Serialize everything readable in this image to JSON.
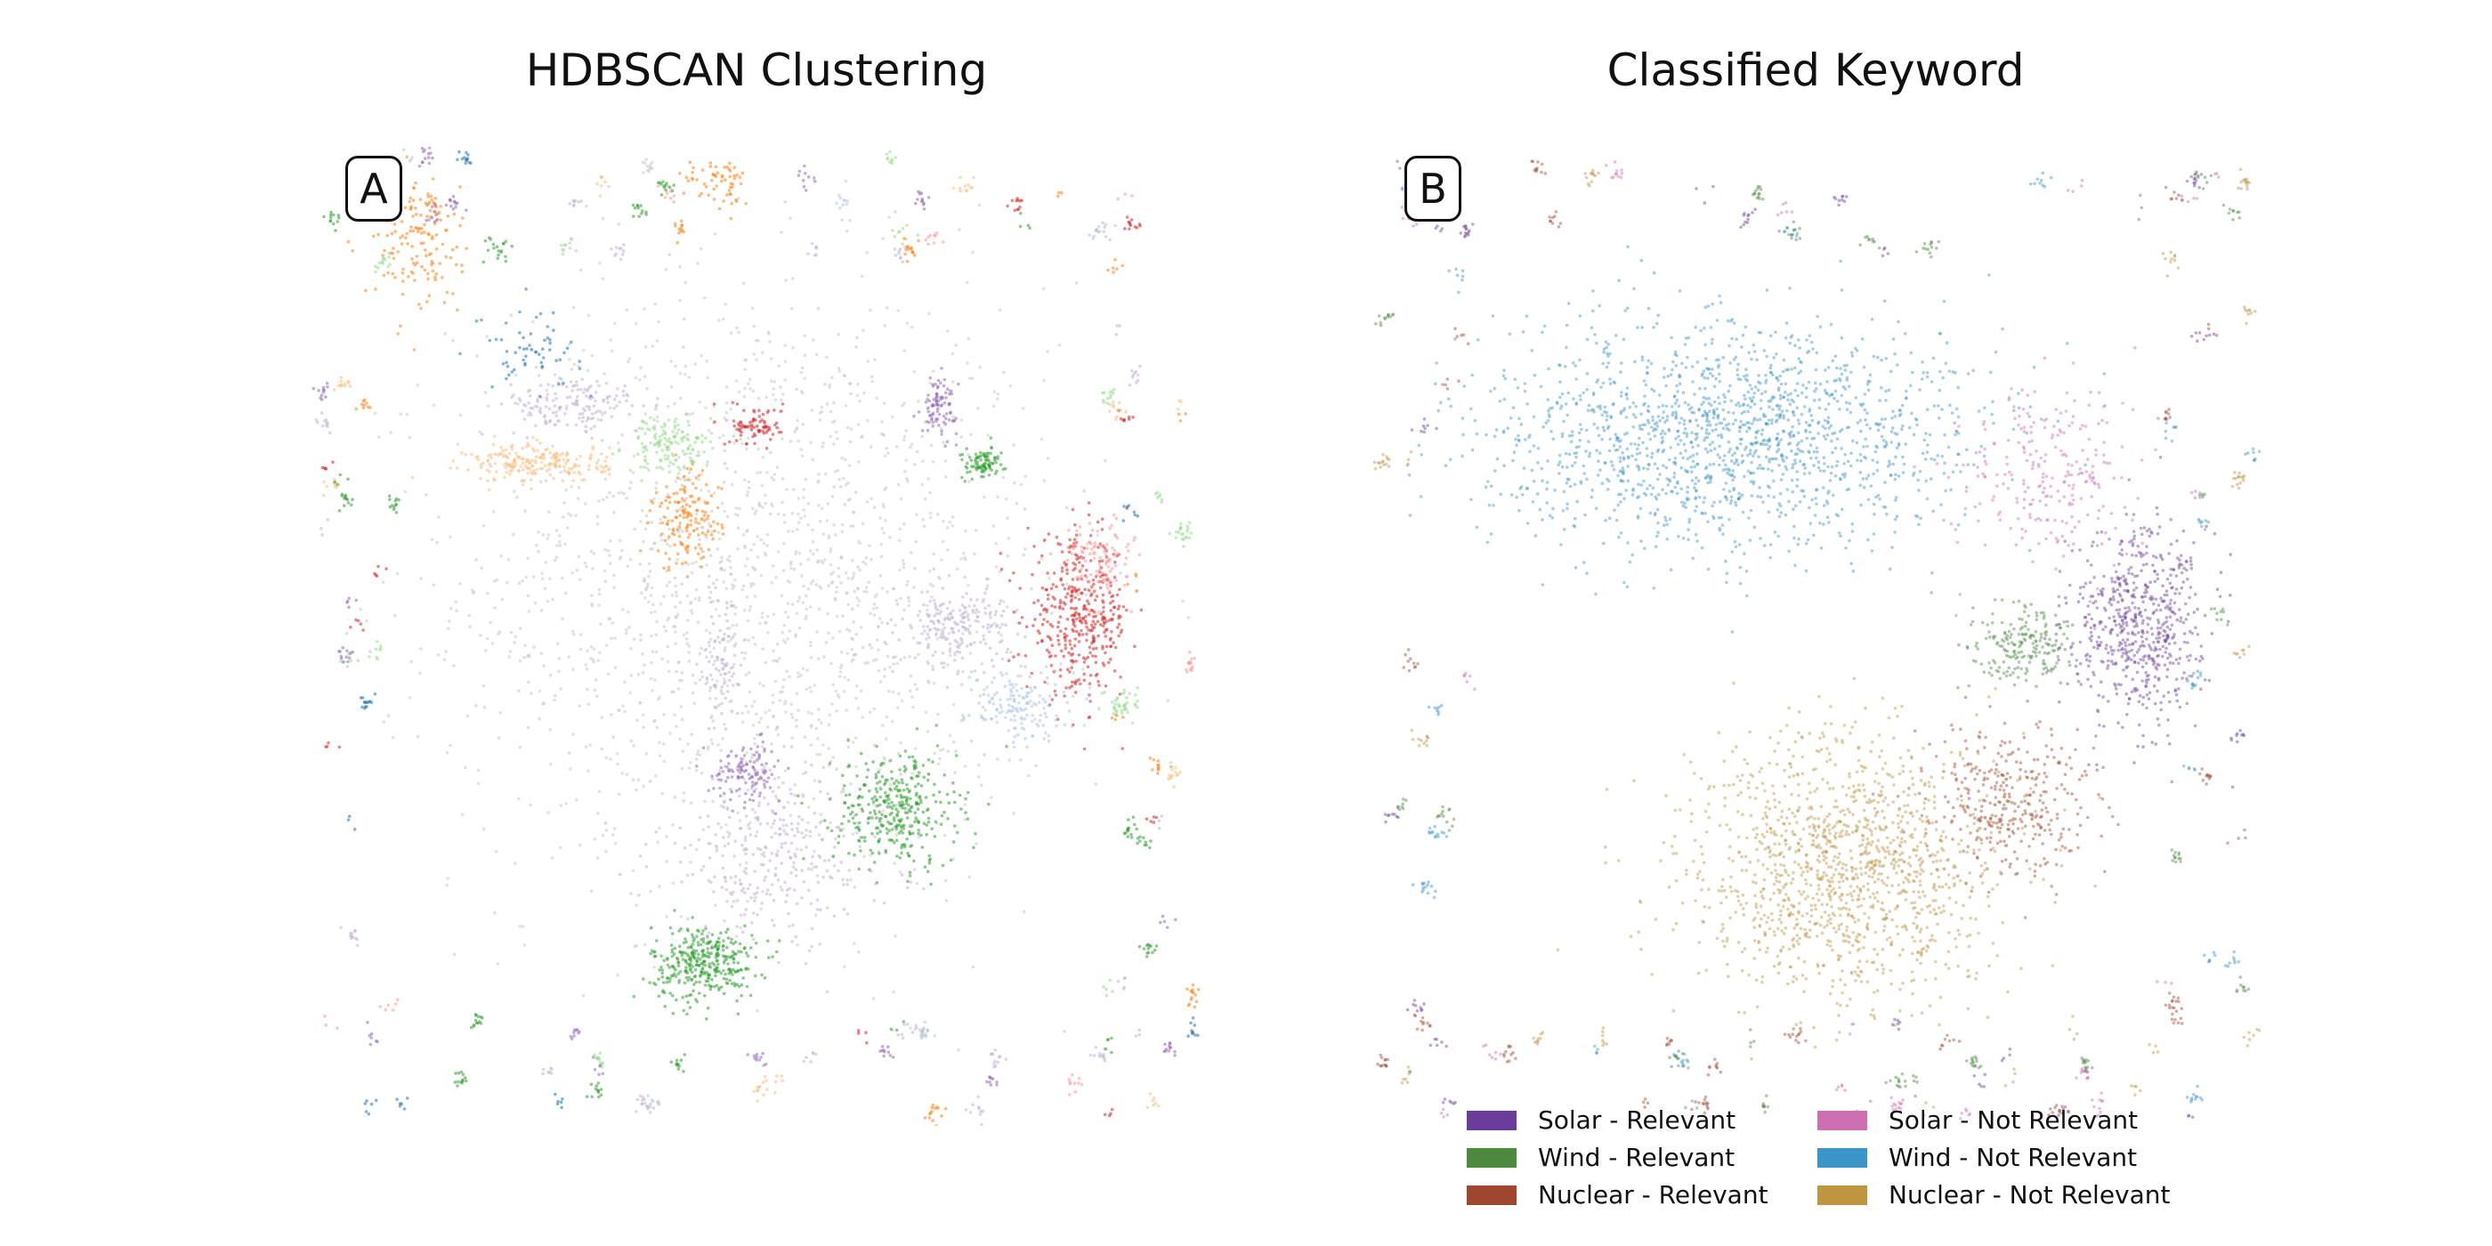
{
  "chart_data": [
    {
      "type": "scatter",
      "panel": "A",
      "title": "HDBSCAN Clustering",
      "xlabel": "",
      "ylabel": "",
      "axes": "hidden",
      "xlim": [
        0,
        100
      ],
      "ylim": [
        0,
        100
      ],
      "color_scheme": "tab20 cluster labels; grey = noise",
      "clusters": [
        {
          "label": "noise",
          "color": "#c8c8c8",
          "centroid": [
            50,
            55
          ],
          "spread": [
            17,
            16
          ],
          "n": 1800
        },
        {
          "label": "c1",
          "color": "#2ca02c",
          "centroid": [
            44,
            16
          ],
          "spread": [
            3,
            2
          ],
          "n": 350
        },
        {
          "label": "c2",
          "color": "#2ca02c",
          "centroid": [
            66,
            32
          ],
          "spread": [
            3.5,
            3
          ],
          "n": 350
        },
        {
          "label": "c3",
          "color": "#c5b0d5",
          "centroid": [
            52,
            27
          ],
          "spread": [
            7,
            4.5
          ],
          "n": 300
        },
        {
          "label": "c4",
          "color": "#d62728",
          "centroid": [
            87,
            52
          ],
          "spread": [
            3,
            4
          ],
          "n": 400
        },
        {
          "label": "c5",
          "color": "#c5b0d5",
          "centroid": [
            73,
            51
          ],
          "spread": [
            3,
            2
          ],
          "n": 200
        },
        {
          "label": "c6",
          "color": "#aec7e8",
          "centroid": [
            80,
            43
          ],
          "spread": [
            3,
            2
          ],
          "n": 150
        },
        {
          "label": "c7",
          "color": "#ffbb78",
          "centroid": [
            25,
            68
          ],
          "spread": [
            4,
            1
          ],
          "n": 200
        },
        {
          "label": "c8",
          "color": "#ff7f0e",
          "centroid": [
            42,
            62
          ],
          "spread": [
            2,
            2.5
          ],
          "n": 150
        },
        {
          "label": "c9",
          "color": "#98df8a",
          "centroid": [
            40,
            70
          ],
          "spread": [
            2.5,
            1.5
          ],
          "n": 150
        },
        {
          "label": "c10",
          "color": "#c5b0d5",
          "centroid": [
            29,
            74
          ],
          "spread": [
            4,
            1.5
          ],
          "n": 150
        },
        {
          "label": "c11",
          "color": "#1f77b4",
          "centroid": [
            24,
            80
          ],
          "spread": [
            3,
            2
          ],
          "n": 60
        },
        {
          "label": "c12",
          "color": "#9467bd",
          "centroid": [
            49,
            36
          ],
          "spread": [
            2,
            1.5
          ],
          "n": 120
        },
        {
          "label": "c13",
          "color": "#9467bd",
          "centroid": [
            71,
            74
          ],
          "spread": [
            1,
            1.5
          ],
          "n": 90
        },
        {
          "label": "c14",
          "color": "#ff9896",
          "centroid": [
            89,
            58
          ],
          "spread": [
            2,
            2
          ],
          "n": 100
        },
        {
          "label": "c15",
          "color": "#2ca02c",
          "centroid": [
            76,
            68
          ],
          "spread": [
            1.2,
            0.8
          ],
          "n": 90
        },
        {
          "label": "c16",
          "color": "#ff7f0e",
          "centroid": [
            11,
            91
          ],
          "spread": [
            2.5,
            4
          ],
          "n": 150
        },
        {
          "label": "c17",
          "color": "#d62728",
          "centroid": [
            50,
            72
          ],
          "spread": [
            1.5,
            1
          ],
          "n": 80
        },
        {
          "label": "c18",
          "color": "#98df8a",
          "centroid": [
            92,
            43
          ],
          "spread": [
            1,
            1
          ],
          "n": 40
        },
        {
          "label": "c19",
          "color": "#ff7f0e",
          "centroid": [
            46,
            97
          ],
          "spread": [
            2,
            1.5
          ],
          "n": 60
        },
        {
          "label": "c20",
          "color": "#c5b0d5",
          "centroid": [
            46,
            48
          ],
          "spread": [
            1,
            4
          ],
          "n": 80
        }
      ]
    },
    {
      "type": "scatter",
      "panel": "B",
      "title": "Classified Keyword",
      "xlabel": "",
      "ylabel": "",
      "axes": "hidden",
      "xlim": [
        0,
        100
      ],
      "ylim": [
        0,
        100
      ],
      "legend_position": "lower-center",
      "legend_columns": 2,
      "series": [
        {
          "name": "Solar - Relevant",
          "color": "#6a3d9a",
          "centroid": [
            87,
            51
          ],
          "spread": [
            4,
            5
          ],
          "n": 600
        },
        {
          "name": "Wind - Relevant",
          "color": "#4b8a3f",
          "centroid": [
            74,
            49
          ],
          "spread": [
            3,
            2
          ],
          "n": 200
        },
        {
          "name": "Nuclear - Relevant",
          "color": "#a0462e",
          "centroid": [
            72,
            33
          ],
          "spread": [
            5,
            4
          ],
          "n": 350
        },
        {
          "name": "Solar - Not Relevant",
          "color": "#cf6fb3",
          "centroid": [
            76,
            67
          ],
          "spread": [
            5,
            5
          ],
          "n": 250
        },
        {
          "name": "Wind - Not Relevant",
          "color": "#3a95c8",
          "centroid": [
            40,
            71
          ],
          "spread": [
            14,
            6
          ],
          "n": 1600
        },
        {
          "name": "Nuclear - Not Relevant",
          "color": "#bf9540",
          "centroid": [
            53,
            26
          ],
          "spread": [
            9,
            7
          ],
          "n": 1300
        }
      ]
    }
  ],
  "legend": {
    "items": [
      {
        "label": "Solar - Relevant",
        "color": "#6a3d9a"
      },
      {
        "label": "Wind - Relevant",
        "color": "#4b8a3f"
      },
      {
        "label": "Nuclear - Relevant",
        "color": "#a0462e"
      },
      {
        "label": "Solar - Not Relevant",
        "color": "#cf6fb3"
      },
      {
        "label": "Wind - Not Relevant",
        "color": "#3a95c8"
      },
      {
        "label": "Nuclear - Not Relevant",
        "color": "#bf9540"
      }
    ]
  }
}
